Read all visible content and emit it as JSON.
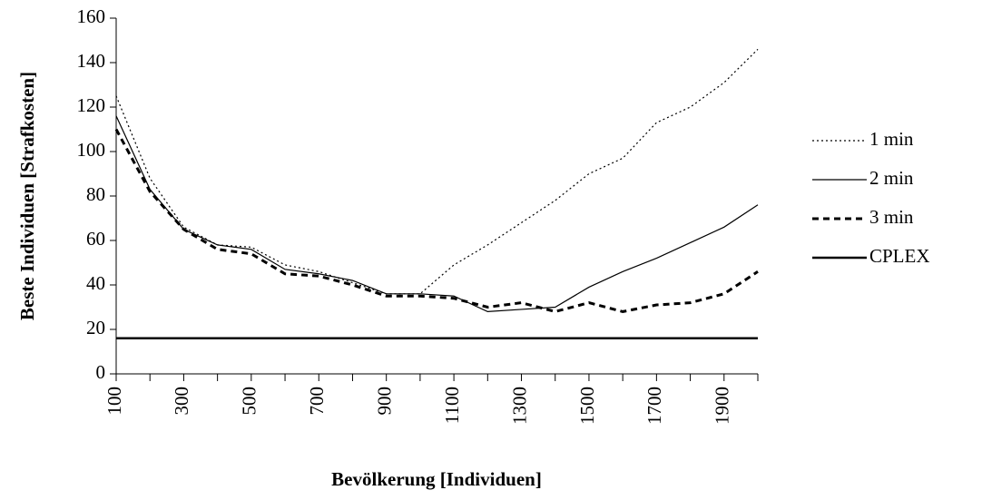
{
  "chart_data": {
    "type": "line",
    "x_label": "Bevölkerung [Individuen]",
    "y_label": "Beste Individuen [Strafkosten]",
    "x": [
      100,
      200,
      300,
      400,
      500,
      600,
      700,
      800,
      900,
      1000,
      1100,
      1200,
      1300,
      1400,
      1500,
      1600,
      1700,
      1800,
      1900,
      2000
    ],
    "series": [
      {
        "name": "1 min",
        "color": "#000000",
        "line_style": "dotted",
        "line_width": 1.2,
        "values": [
          125,
          88,
          66,
          58,
          57,
          49,
          46,
          41,
          36,
          36,
          49,
          58,
          68,
          78,
          90,
          97,
          113,
          120,
          131,
          146
        ]
      },
      {
        "name": "2 min",
        "color": "#000000",
        "line_style": "solid",
        "line_width": 1.2,
        "values": [
          116,
          83,
          65,
          58,
          56,
          47,
          45,
          42,
          36,
          36,
          35,
          28,
          29,
          30,
          39,
          46,
          52,
          59,
          66,
          76
        ]
      },
      {
        "name": "3 min",
        "color": "#000000",
        "line_style": "dashed",
        "line_width": 3,
        "values": [
          110,
          82,
          65,
          56,
          54,
          45,
          44,
          40,
          35,
          35,
          34,
          30,
          32,
          28,
          32,
          28,
          31,
          32,
          36,
          46
        ]
      },
      {
        "name": "CPLEX",
        "color": "#000000",
        "line_style": "solid",
        "line_width": 2.5,
        "values": [
          16,
          16,
          16,
          16,
          16,
          16,
          16,
          16,
          16,
          16,
          16,
          16,
          16,
          16,
          16,
          16,
          16,
          16,
          16,
          16
        ]
      }
    ],
    "xlim": [
      100,
      2000
    ],
    "xticks": [
      100,
      300,
      500,
      700,
      900,
      1100,
      1300,
      1500,
      1700,
      1900
    ],
    "ylim": [
      0,
      160
    ],
    "yticks": [
      0,
      20,
      40,
      60,
      80,
      100,
      120,
      140,
      160
    ],
    "grid": false,
    "legend": "right"
  }
}
